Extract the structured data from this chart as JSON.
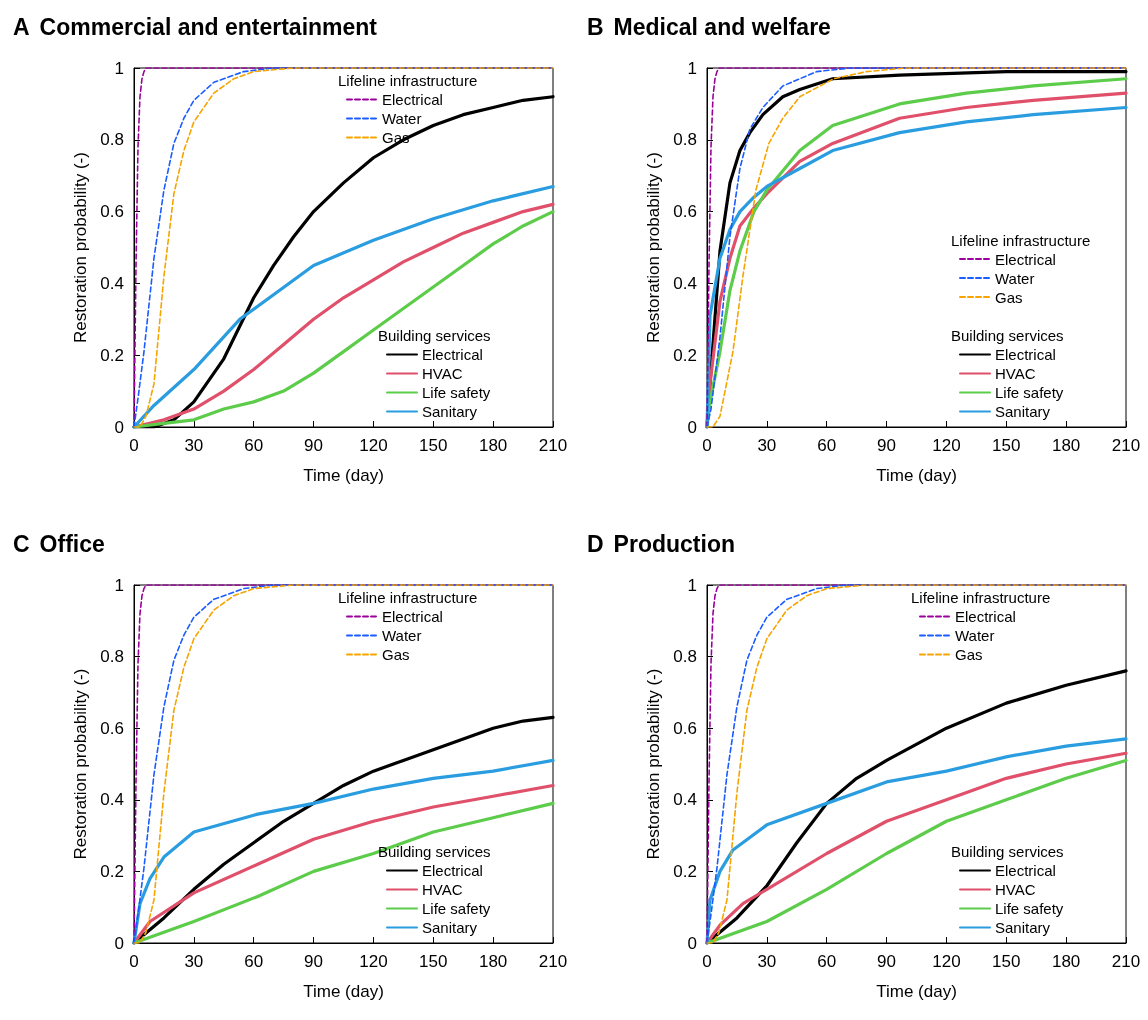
{
  "chart_data": [
    {
      "type": "line",
      "title": "A Commercial and entertainment",
      "xlabel": "Time (day)",
      "ylabel": "Restoration probability (-)",
      "legend_title": [
        "Lifeline infrastructure",
        "Building services"
      ],
      "legend": [
        "top right",
        "bottom right"
      ],
      "xlim": [
        0,
        210
      ],
      "xticks": [
        0,
        30,
        60,
        90,
        120,
        150,
        180,
        210
      ],
      "ylim": [
        0,
        1
      ],
      "yticks": [
        0,
        0.2,
        0.4,
        0.6,
        0.8,
        1
      ],
      "grid": false,
      "marker": "none",
      "series": [
        {
          "name": "Electrical",
          "color": "#9b009b",
          "line_style": "dashed",
          "x": [
            0,
            1,
            2,
            3,
            4,
            5,
            6,
            8,
            210
          ],
          "values": [
            0,
            0.45,
            0.78,
            0.92,
            0.97,
            0.99,
            1,
            1,
            1
          ]
        },
        {
          "name": "Water",
          "color": "#1a5cff",
          "line_style": "dashed",
          "x": [
            0,
            2,
            5,
            10,
            15,
            20,
            25,
            30,
            40,
            55,
            70,
            210
          ],
          "values": [
            0,
            0.08,
            0.21,
            0.47,
            0.66,
            0.79,
            0.86,
            0.91,
            0.96,
            0.99,
            1,
            1
          ]
        },
        {
          "name": "Gas",
          "color": "#f5a400",
          "line_style": "dashed",
          "x": [
            0,
            3,
            6,
            10,
            15,
            20,
            25,
            30,
            40,
            50,
            60,
            80,
            210
          ],
          "values": [
            0,
            0,
            0.03,
            0.12,
            0.42,
            0.65,
            0.77,
            0.85,
            0.93,
            0.97,
            0.99,
            1,
            1
          ]
        },
        {
          "name": "Electrical",
          "color": "#000000",
          "line_style": "solid",
          "x": [
            0,
            10,
            15,
            20,
            30,
            45,
            60,
            70,
            80,
            90,
            105,
            120,
            135,
            150,
            165,
            180,
            195,
            210
          ],
          "values": [
            0,
            0,
            0.01,
            0.02,
            0.07,
            0.19,
            0.36,
            0.45,
            0.53,
            0.6,
            0.68,
            0.75,
            0.8,
            0.84,
            0.87,
            0.89,
            0.91,
            0.92
          ]
        },
        {
          "name": "HVAC",
          "color": "#e0506a",
          "line_style": "solid",
          "x": [
            0,
            15,
            30,
            45,
            60,
            75,
            90,
            105,
            120,
            135,
            150,
            165,
            180,
            195,
            210
          ],
          "values": [
            0,
            0.02,
            0.05,
            0.1,
            0.16,
            0.23,
            0.3,
            0.36,
            0.41,
            0.46,
            0.5,
            0.54,
            0.57,
            0.6,
            0.62
          ]
        },
        {
          "name": "Life safety",
          "color": "#5ccc4a",
          "line_style": "solid",
          "x": [
            0,
            15,
            30,
            45,
            60,
            75,
            90,
            105,
            120,
            135,
            150,
            165,
            180,
            195,
            210
          ],
          "values": [
            0,
            0.01,
            0.02,
            0.05,
            0.07,
            0.1,
            0.15,
            0.21,
            0.27,
            0.33,
            0.39,
            0.45,
            0.51,
            0.56,
            0.6
          ]
        },
        {
          "name": "Sanitary",
          "color": "#2a9de0",
          "line_style": "solid",
          "x": [
            0,
            10,
            20,
            30,
            53,
            90,
            120,
            150,
            180,
            210
          ],
          "values": [
            0,
            0.06,
            0.11,
            0.16,
            0.3,
            0.45,
            0.52,
            0.58,
            0.63,
            0.67
          ]
        }
      ]
    },
    {
      "type": "line",
      "title": "B Medical and welfare",
      "xlabel": "Time (day)",
      "ylabel": "Restoration probability (-)",
      "legend_title": [
        "Lifeline infrastructure",
        "Building services"
      ],
      "legend": [
        "right",
        "bottom right"
      ],
      "xlim": [
        0,
        210
      ],
      "xticks": [
        0,
        30,
        60,
        90,
        120,
        150,
        180,
        210
      ],
      "ylim": [
        0,
        1
      ],
      "yticks": [
        0,
        0.2,
        0.4,
        0.6,
        0.8,
        1
      ],
      "grid": false,
      "marker": "none",
      "series": [
        {
          "name": "Electrical",
          "color": "#9b009b",
          "line_style": "dashed",
          "x": [
            0,
            1,
            2,
            3,
            4,
            5,
            6,
            8,
            210
          ],
          "values": [
            0,
            0.45,
            0.78,
            0.92,
            0.97,
            0.99,
            1,
            1,
            1
          ]
        },
        {
          "name": "Water",
          "color": "#1a5cff",
          "line_style": "dashed",
          "x": [
            0,
            2,
            6.5,
            11.5,
            16.5,
            21.5,
            28,
            38,
            55,
            72,
            210
          ],
          "values": [
            0,
            0.05,
            0.25,
            0.53,
            0.72,
            0.83,
            0.89,
            0.95,
            0.99,
            1,
            1
          ]
        },
        {
          "name": "Gas",
          "color": "#f5a400",
          "line_style": "dashed",
          "x": [
            0,
            3,
            6.5,
            13,
            18,
            24.5,
            31,
            38,
            46.5,
            63.5,
            80,
            100,
            210
          ],
          "values": [
            0,
            0,
            0.03,
            0.21,
            0.42,
            0.66,
            0.79,
            0.86,
            0.92,
            0.97,
            0.99,
            1,
            1
          ]
        },
        {
          "name": "Electrical",
          "color": "#000000",
          "line_style": "solid",
          "x": [
            0,
            1.5,
            6.5,
            11.5,
            16.5,
            21.5,
            28,
            38,
            46.5,
            63,
            96.5,
            150,
            210
          ],
          "values": [
            0,
            0.12,
            0.49,
            0.68,
            0.77,
            0.82,
            0.87,
            0.92,
            0.94,
            0.97,
            0.98,
            0.99,
            0.99
          ]
        },
        {
          "name": "HVAC",
          "color": "#e0506a",
          "line_style": "solid",
          "x": [
            0,
            1.5,
            6.5,
            11.5,
            16.5,
            23.5,
            30,
            46.5,
            63,
            96.5,
            130,
            163.5,
            210
          ],
          "values": [
            0,
            0.12,
            0.35,
            0.47,
            0.56,
            0.61,
            0.65,
            0.74,
            0.79,
            0.86,
            0.89,
            0.91,
            0.93
          ]
        },
        {
          "name": "Life safety",
          "color": "#5ccc4a",
          "line_style": "solid",
          "x": [
            0,
            1.5,
            6.5,
            11.5,
            16.5,
            23.5,
            30,
            46.5,
            63,
            96.5,
            130,
            163.5,
            210
          ],
          "values": [
            0,
            0.07,
            0.21,
            0.38,
            0.49,
            0.6,
            0.66,
            0.77,
            0.84,
            0.9,
            0.93,
            0.95,
            0.97
          ]
        },
        {
          "name": "Sanitary",
          "color": "#2a9de0",
          "line_style": "solid",
          "x": [
            0,
            1.5,
            6.5,
            11.5,
            16.5,
            23.5,
            30,
            46.5,
            63,
            96.5,
            130,
            163.5,
            210
          ],
          "values": [
            0,
            0.31,
            0.47,
            0.55,
            0.6,
            0.64,
            0.67,
            0.72,
            0.77,
            0.82,
            0.85,
            0.87,
            0.89
          ]
        }
      ]
    },
    {
      "type": "line",
      "title": "C Office",
      "xlabel": "Time (day)",
      "ylabel": "Restoration probability (-)",
      "legend_title": [
        "Lifeline infrastructure",
        "Building services"
      ],
      "legend": [
        "top right",
        "bottom right"
      ],
      "xlim": [
        0,
        210
      ],
      "xticks": [
        0,
        30,
        60,
        90,
        120,
        150,
        180,
        210
      ],
      "ylim": [
        0,
        1
      ],
      "yticks": [
        0,
        0.2,
        0.4,
        0.6,
        0.8,
        1
      ],
      "grid": false,
      "marker": "none",
      "series": [
        {
          "name": "Electrical",
          "color": "#9b009b",
          "line_style": "dashed",
          "x": [
            0,
            1,
            2,
            3,
            4,
            5,
            6,
            8,
            210
          ],
          "values": [
            0,
            0.45,
            0.78,
            0.92,
            0.97,
            0.99,
            1,
            1,
            1
          ]
        },
        {
          "name": "Water",
          "color": "#1a5cff",
          "line_style": "dashed",
          "x": [
            0,
            2,
            5,
            10,
            15,
            20,
            25,
            30,
            40,
            55,
            70,
            210
          ],
          "values": [
            0,
            0.08,
            0.21,
            0.47,
            0.66,
            0.79,
            0.86,
            0.91,
            0.96,
            0.99,
            1,
            1
          ]
        },
        {
          "name": "Gas",
          "color": "#f5a400",
          "line_style": "dashed",
          "x": [
            0,
            3,
            6,
            10,
            15,
            20,
            25,
            30,
            40,
            50,
            60,
            80,
            210
          ],
          "values": [
            0,
            0,
            0.03,
            0.12,
            0.42,
            0.65,
            0.77,
            0.85,
            0.93,
            0.97,
            0.99,
            1,
            1
          ]
        },
        {
          "name": "Electrical",
          "color": "#000000",
          "line_style": "solid",
          "x": [
            0,
            15,
            30,
            45,
            60,
            75,
            90,
            105,
            120,
            135,
            150,
            165,
            180,
            195,
            210
          ],
          "values": [
            0,
            0.07,
            0.15,
            0.22,
            0.28,
            0.34,
            0.39,
            0.44,
            0.48,
            0.51,
            0.54,
            0.57,
            0.6,
            0.62,
            0.63
          ]
        },
        {
          "name": "HVAC",
          "color": "#e0506a",
          "line_style": "solid",
          "x": [
            0,
            8,
            30,
            62,
            90,
            120,
            150,
            180,
            210
          ],
          "values": [
            0,
            0.06,
            0.14,
            0.22,
            0.29,
            0.34,
            0.38,
            0.41,
            0.44
          ]
        },
        {
          "name": "Life safety",
          "color": "#5ccc4a",
          "line_style": "solid",
          "x": [
            0,
            30,
            62,
            90,
            120,
            150,
            180,
            210
          ],
          "values": [
            0,
            0.06,
            0.13,
            0.2,
            0.25,
            0.31,
            0.35,
            0.39
          ]
        },
        {
          "name": "Sanitary",
          "color": "#2a9de0",
          "line_style": "solid",
          "x": [
            0,
            3,
            8,
            15,
            30,
            62,
            90,
            120,
            150,
            180,
            210
          ],
          "values": [
            0,
            0.11,
            0.18,
            0.24,
            0.31,
            0.36,
            0.39,
            0.43,
            0.46,
            0.48,
            0.51
          ]
        }
      ]
    },
    {
      "type": "line",
      "title": "D Production",
      "xlabel": "Time (day)",
      "ylabel": "Restoration probability (-)",
      "legend_title": [
        "Lifeline infrastructure",
        "Building services"
      ],
      "legend": [
        "top right",
        "bottom right"
      ],
      "xlim": [
        0,
        210
      ],
      "xticks": [
        0,
        30,
        60,
        90,
        120,
        150,
        180,
        210
      ],
      "ylim": [
        0,
        1
      ],
      "yticks": [
        0,
        0.2,
        0.4,
        0.6,
        0.8,
        1
      ],
      "grid": false,
      "marker": "none",
      "series": [
        {
          "name": "Electrical",
          "color": "#9b009b",
          "line_style": "dashed",
          "x": [
            0,
            1,
            2,
            3,
            4,
            5,
            6,
            8,
            210
          ],
          "values": [
            0,
            0.45,
            0.78,
            0.92,
            0.97,
            0.99,
            1,
            1,
            1
          ]
        },
        {
          "name": "Water",
          "color": "#1a5cff",
          "line_style": "dashed",
          "x": [
            0,
            2,
            5,
            10,
            15,
            20,
            25,
            30,
            40,
            55,
            70,
            210
          ],
          "values": [
            0,
            0.08,
            0.21,
            0.47,
            0.66,
            0.79,
            0.86,
            0.91,
            0.96,
            0.99,
            1,
            1
          ]
        },
        {
          "name": "Gas",
          "color": "#f5a400",
          "line_style": "dashed",
          "x": [
            0,
            3,
            6,
            10,
            15,
            20,
            25,
            30,
            40,
            50,
            60,
            80,
            210
          ],
          "values": [
            0,
            0,
            0.03,
            0.12,
            0.42,
            0.65,
            0.77,
            0.85,
            0.93,
            0.97,
            0.99,
            1,
            1
          ]
        },
        {
          "name": "Electrical",
          "color": "#000000",
          "line_style": "solid",
          "x": [
            0,
            15,
            30,
            45,
            60,
            75,
            90,
            120,
            150,
            180,
            210
          ],
          "values": [
            0,
            0.07,
            0.16,
            0.28,
            0.39,
            0.46,
            0.51,
            0.6,
            0.67,
            0.72,
            0.76
          ]
        },
        {
          "name": "HVAC",
          "color": "#e0506a",
          "line_style": "solid",
          "x": [
            0,
            6.5,
            18,
            30,
            60,
            90,
            120,
            150,
            180,
            210
          ],
          "values": [
            0,
            0.05,
            0.11,
            0.15,
            0.25,
            0.34,
            0.4,
            0.46,
            0.5,
            0.53
          ]
        },
        {
          "name": "Life safety",
          "color": "#5ccc4a",
          "line_style": "solid",
          "x": [
            0,
            30,
            60,
            90,
            120,
            150,
            180,
            210
          ],
          "values": [
            0,
            0.06,
            0.15,
            0.25,
            0.34,
            0.4,
            0.46,
            0.51
          ]
        },
        {
          "name": "Sanitary",
          "color": "#2a9de0",
          "line_style": "solid",
          "x": [
            0,
            1.5,
            6.5,
            13,
            30,
            60,
            90,
            120,
            150,
            180,
            210
          ],
          "values": [
            0,
            0.12,
            0.2,
            0.26,
            0.33,
            0.39,
            0.45,
            0.48,
            0.52,
            0.55,
            0.57
          ]
        }
      ]
    }
  ]
}
